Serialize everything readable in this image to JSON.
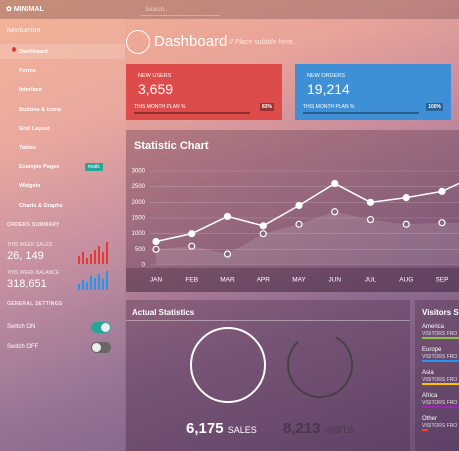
{
  "topbar": {
    "logo": "MINIMAL",
    "search": "Search..."
  },
  "sidebar": {
    "nav_heading": "NAVIGATION",
    "nav": [
      "Dashboard",
      "Forms",
      "Interface",
      "Buttons & Icons",
      "Grid Layout",
      "Tables",
      "Example Pages",
      "Widgets",
      "Charts & Graphs"
    ],
    "badge": "mails",
    "orders_heading": "ORDERS SUMMARY",
    "sales_label": "THIS WEEK SALES",
    "sales": "26, 149",
    "balance_label": "THIS WEEK BALANCE",
    "balance": "318,651",
    "settings_heading": "GENERAL SETTINGS",
    "switch_on": "Switch ON",
    "switch_off": "Switch OFF"
  },
  "header": {
    "title": "Dashboard",
    "subtitle": "// Place subtitle here..."
  },
  "cards": [
    {
      "label": "NEW USERS",
      "value": "3,659",
      "plan": "THIS MONTH PLAN %",
      "percent": "83%"
    },
    {
      "label": "NEW ORDERS",
      "value": "19,214",
      "plan": "THIS MONTH PLAN %",
      "percent": "100%"
    }
  ],
  "chart_data": {
    "type": "line",
    "title": "Statistic Chart",
    "categories": [
      "JAN",
      "FEB",
      "MAR",
      "APR",
      "MAY",
      "JUN",
      "JUL",
      "AUG",
      "SEP"
    ],
    "series": [
      {
        "color": "#ffffff",
        "values": [
          750,
          1000,
          1550,
          1250,
          1900,
          2600,
          2000,
          2150,
          2350
        ]
      },
      {
        "color": "#ffffff",
        "values": [
          500,
          600,
          350,
          1000,
          1300,
          1700,
          1450,
          1300,
          1350
        ]
      }
    ],
    "ylim": [
      0,
      3000
    ],
    "yticks": [
      0,
      500,
      1000,
      1500,
      2000,
      2500,
      3000
    ],
    "grid": true
  },
  "actual": {
    "title": "Actual Statistics",
    "sales": "6,175",
    "sales_label": "SALES",
    "visits": "8,213",
    "visits_label": "VISITS"
  },
  "visitors": {
    "title": "Visitors S",
    "items": [
      {
        "name": "America",
        "label": "VISITORS FRO",
        "color": "#8bc34a"
      },
      {
        "name": "Europe",
        "label": "VISITORS FRO",
        "color": "#2196f3"
      },
      {
        "name": "Asia",
        "label": "VISITORS FRO",
        "color": "#ffc107"
      },
      {
        "name": "Africa",
        "label": "VISITORS FRO",
        "color": "#9c27b0"
      },
      {
        "name": "Other",
        "label": "VISITORS FRO",
        "color": "#f44336"
      }
    ]
  }
}
